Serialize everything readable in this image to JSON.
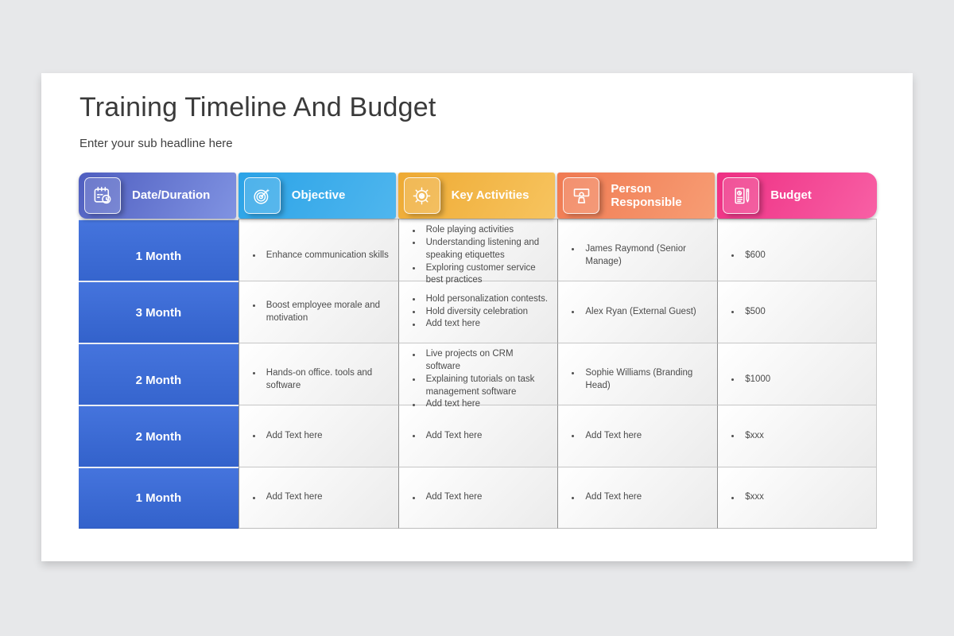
{
  "slide": {
    "title": "Training Timeline And Budget",
    "subtitle": "Enter your sub headline here"
  },
  "colors": {
    "page_background": "#e7e8ea",
    "month_gradient": [
      "#4574dd",
      "#3362cb"
    ]
  },
  "table": {
    "headers": [
      {
        "label": "Date/Duration",
        "icon": "calendar-clock-icon",
        "gradient": [
          "#4f5ec0",
          "#8093e2"
        ]
      },
      {
        "label": "Objective",
        "icon": "target-icon",
        "gradient": [
          "#2ba3e7",
          "#4fb6ee"
        ]
      },
      {
        "label": "Key Activities",
        "icon": "ship-wheel-icon",
        "gradient": [
          "#eeaa33",
          "#f7c45f"
        ]
      },
      {
        "label": "Person Responsible",
        "icon": "presenter-icon",
        "gradient": [
          "#f07a52",
          "#f79d74"
        ]
      },
      {
        "label": "Budget",
        "icon": "budget-document-icon",
        "gradient": [
          "#ee2f83",
          "#f860a5"
        ]
      }
    ],
    "rows": [
      {
        "duration": "1 Month",
        "objective": [
          "Enhance communication skills"
        ],
        "key_activities": [
          "Role playing activities",
          "Understanding listening and speaking etiquettes",
          "Exploring customer service best practices"
        ],
        "person_responsible": [
          "James Raymond (Senior Manage)"
        ],
        "budget": [
          "$600"
        ]
      },
      {
        "duration": "3 Month",
        "objective": [
          "Boost employee morale and motivation"
        ],
        "key_activities": [
          "Hold personalization contests.",
          "Hold diversity celebration",
          "Add text here"
        ],
        "person_responsible": [
          "Alex Ryan (External Guest)"
        ],
        "budget": [
          "$500"
        ]
      },
      {
        "duration": "2 Month",
        "objective": [
          "Hands-on office. tools and software"
        ],
        "key_activities": [
          "Live projects on CRM software",
          "Explaining tutorials on task management software",
          "Add text here"
        ],
        "person_responsible": [
          "Sophie Williams (Branding Head)"
        ],
        "budget": [
          "$1000"
        ]
      },
      {
        "duration": "2 Month",
        "objective": [
          "Add Text here"
        ],
        "key_activities": [
          "Add Text here"
        ],
        "person_responsible": [
          "Add Text here"
        ],
        "budget": [
          "$xxx"
        ]
      },
      {
        "duration": "1 Month",
        "objective": [
          "Add Text here"
        ],
        "key_activities": [
          "Add Text here"
        ],
        "person_responsible": [
          "Add Text here"
        ],
        "budget": [
          "$xxx"
        ]
      }
    ]
  }
}
